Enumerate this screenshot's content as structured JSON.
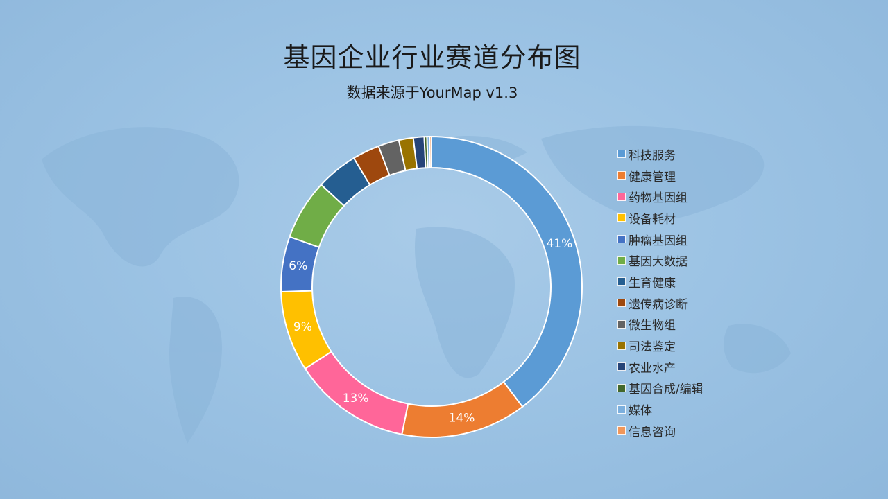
{
  "chart_data": {
    "type": "pie",
    "donut": true,
    "title": "基因企业行业赛道分布图",
    "subtitle": "数据来源于YourMap v1.3",
    "legend_position": "right",
    "categories": [
      "科技服务",
      "健康管理",
      "药物基因组",
      "设备耗材",
      "肿瘤基因组",
      "基因大数据",
      "生育健康",
      "遗传病诊断",
      "微生物组",
      "司法鉴定",
      "农业水产",
      "基因合成/编辑",
      "媒体",
      "信息咨询"
    ],
    "values": [
      40.9,
      13.9,
      13.1,
      8.9,
      6.1,
      6.7,
      4.6,
      3.0,
      2.3,
      1.6,
      1.2,
      0.3,
      0.3,
      0.2
    ],
    "data_labels": [
      "41%",
      "14%",
      "13%",
      "9%",
      "6%",
      "",
      "",
      "",
      "",
      "",
      "",
      "",
      "",
      ""
    ],
    "colors": [
      "#5b9bd5",
      "#ed7d31",
      "#ff6699",
      "#ffc000",
      "#4472c4",
      "#70ad47",
      "#255e91",
      "#9e480e",
      "#636363",
      "#997300",
      "#264478",
      "#43682b",
      "#7cafdd",
      "#f1975a"
    ]
  }
}
